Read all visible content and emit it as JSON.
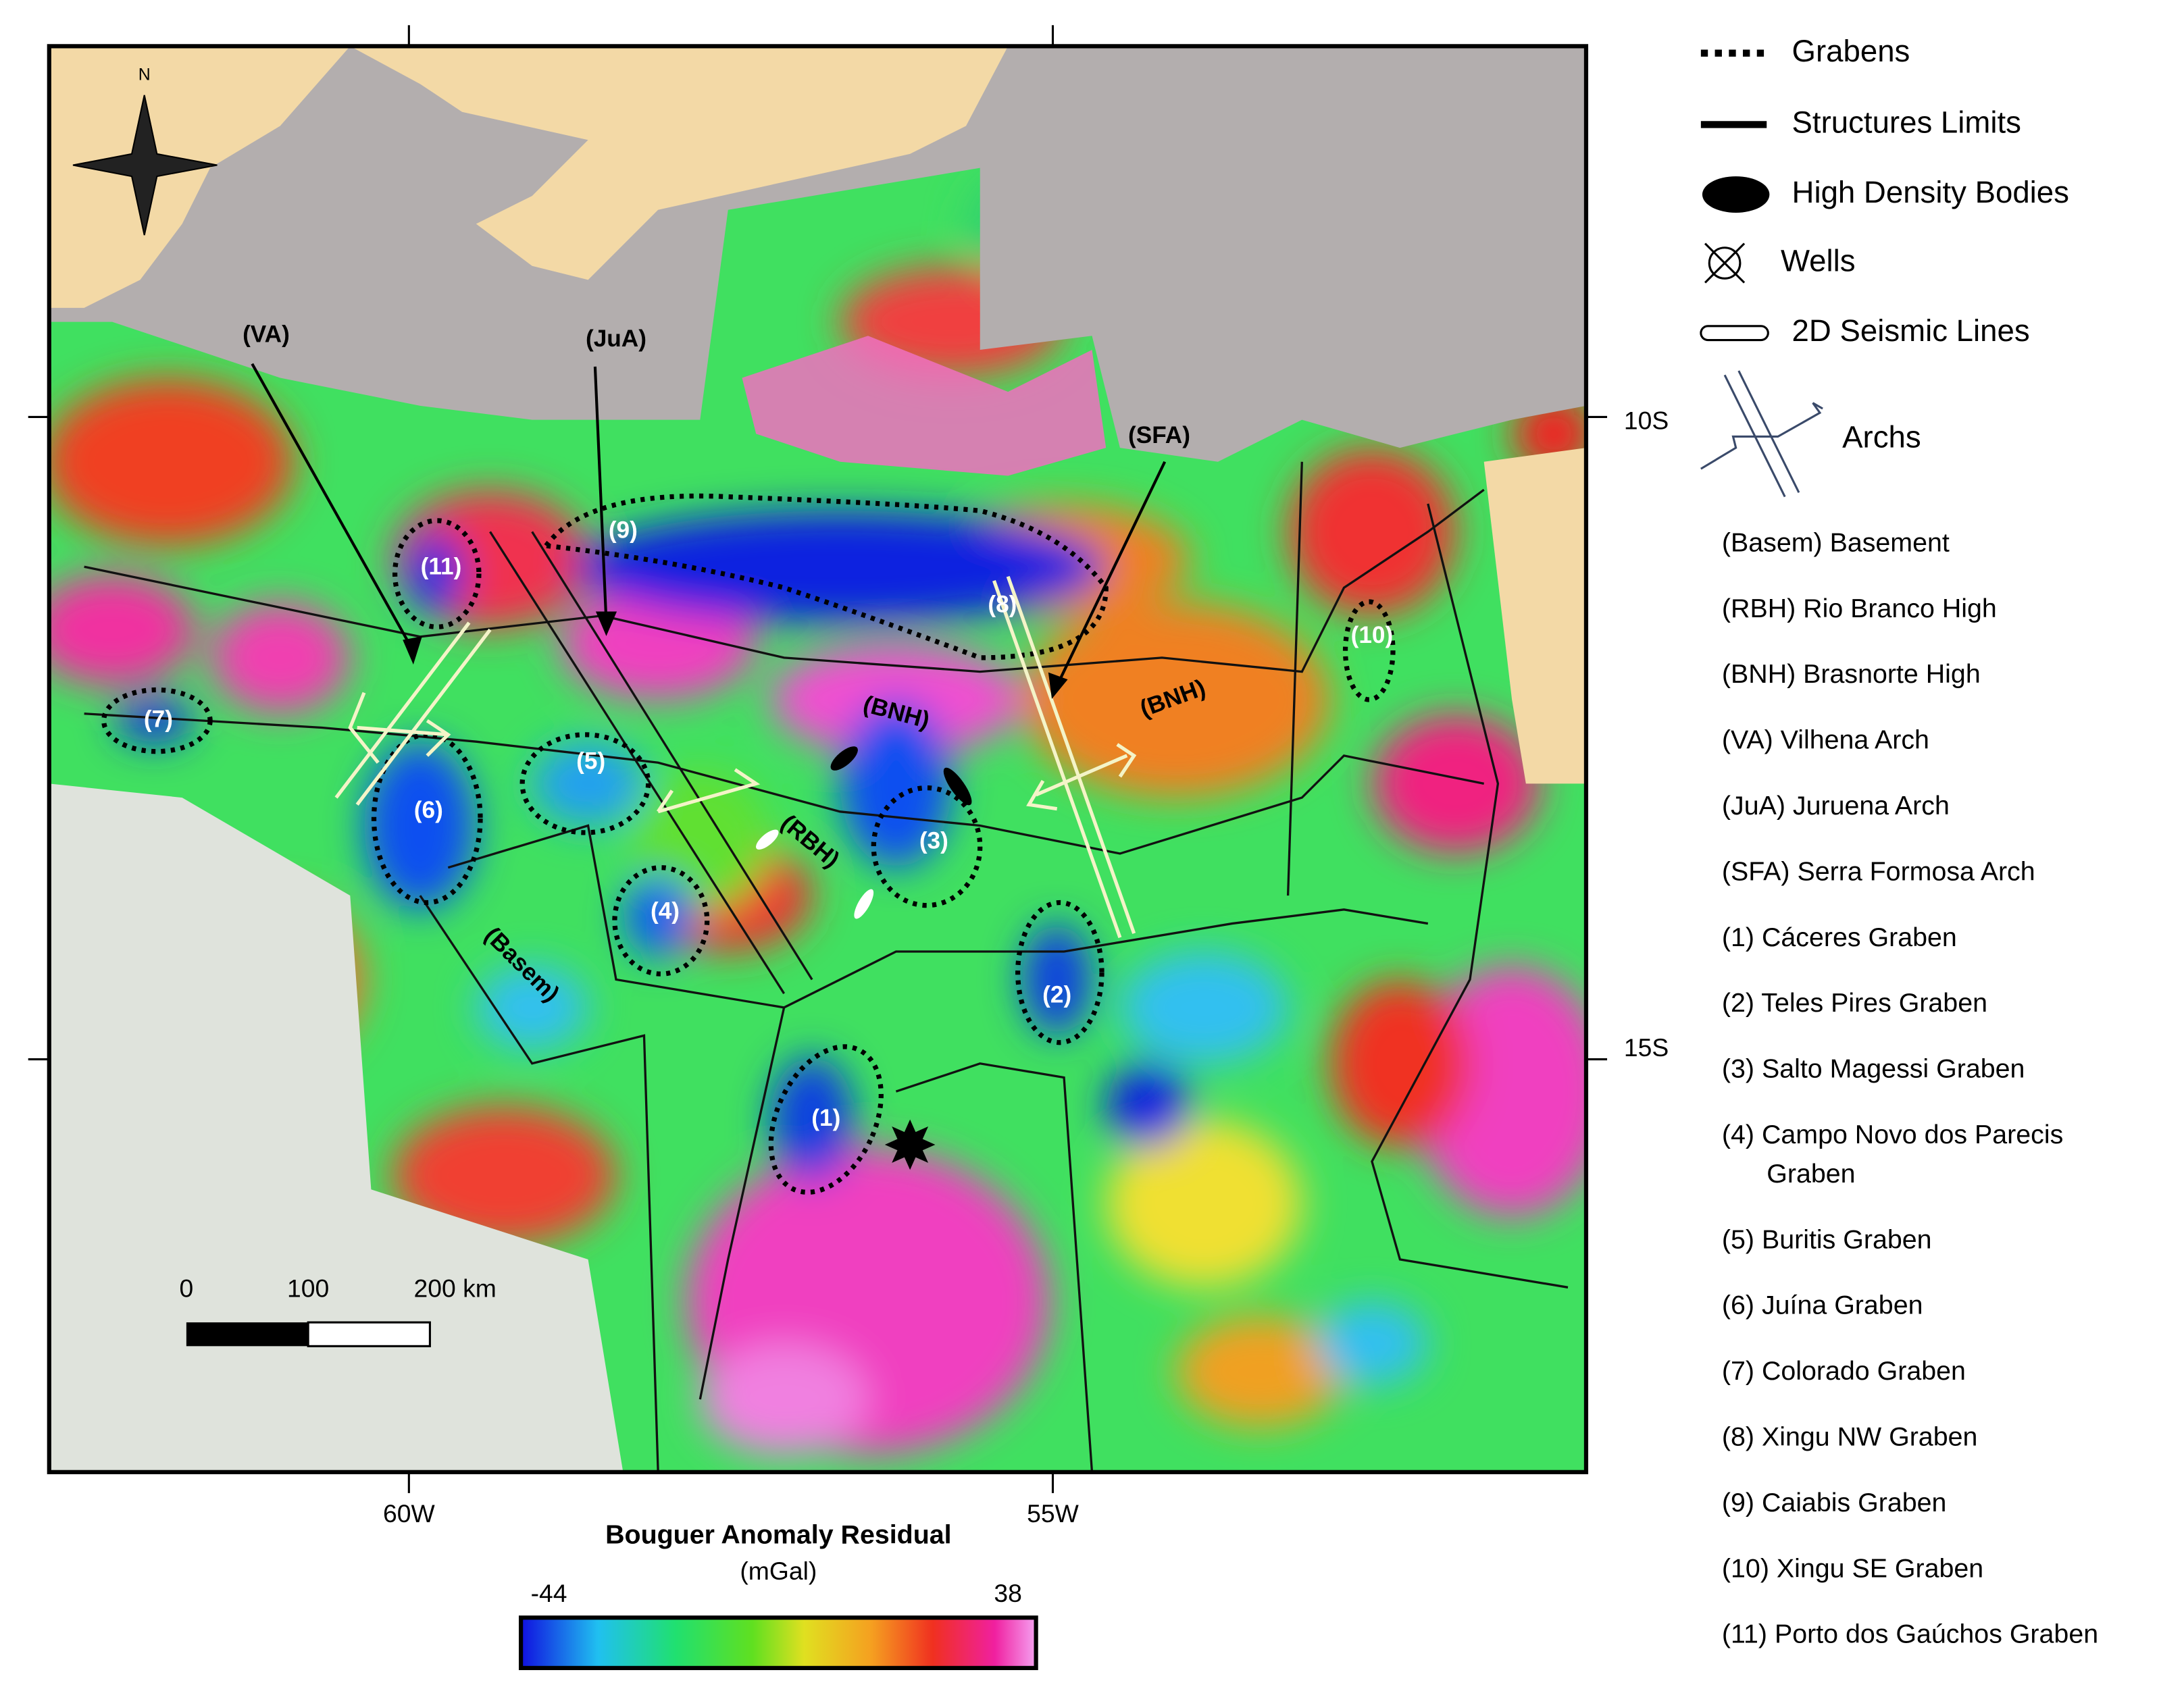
{
  "map": {
    "labels": [
      "(VA)",
      "(JuA)",
      "(SFA)",
      "(BNH)",
      "(BNH)",
      "(RBH)",
      "(Basem)"
    ],
    "grabens": [
      "(1)",
      "(2)",
      "(3)",
      "(4)",
      "(5)",
      "(6)",
      "(7)",
      "(8)",
      "(9)",
      "(10)",
      "(11)"
    ],
    "north": "N",
    "x_ticks": [
      "60W",
      "55W"
    ],
    "y_ticks": [
      "10S",
      "15S"
    ],
    "scale_bar": [
      "0",
      "100",
      "200 km"
    ]
  },
  "colorbar": {
    "title": "Bouguer Anomaly Residual",
    "unit": "(mGal)",
    "min": -44,
    "max": 38
  },
  "legend": {
    "symbols": [
      "Grabens",
      "Structures Limits",
      "High Density Bodies",
      "Wells",
      "2D Seismic Lines",
      "Archs"
    ],
    "abbreviations": [
      [
        "(Basem) Basement"
      ],
      [
        "(RBH) Rio Branco High"
      ],
      [
        "(BNH) Brasnorte High"
      ],
      [
        "(VA) Vilhena Arch"
      ],
      [
        "(JuA) Juruena Arch"
      ],
      [
        "(SFA) Serra Formosa Arch"
      ],
      [
        "(1) Cáceres Graben"
      ],
      [
        "(2) Teles Pires Graben"
      ],
      [
        "(3) Salto Magessi Graben"
      ],
      [
        "(4) Campo Novo dos Parecis",
        "Graben"
      ],
      [
        "(5) Buritis Graben"
      ],
      [
        "(6) Juína Graben"
      ],
      [
        "(7) Colorado Graben"
      ],
      [
        "(8) Xingu NW Graben"
      ],
      [
        "(9) Caiabis Graben"
      ],
      [
        "(10) Xingu SE Graben"
      ],
      [
        "(11) Porto dos Gaúchos Graben"
      ]
    ]
  }
}
